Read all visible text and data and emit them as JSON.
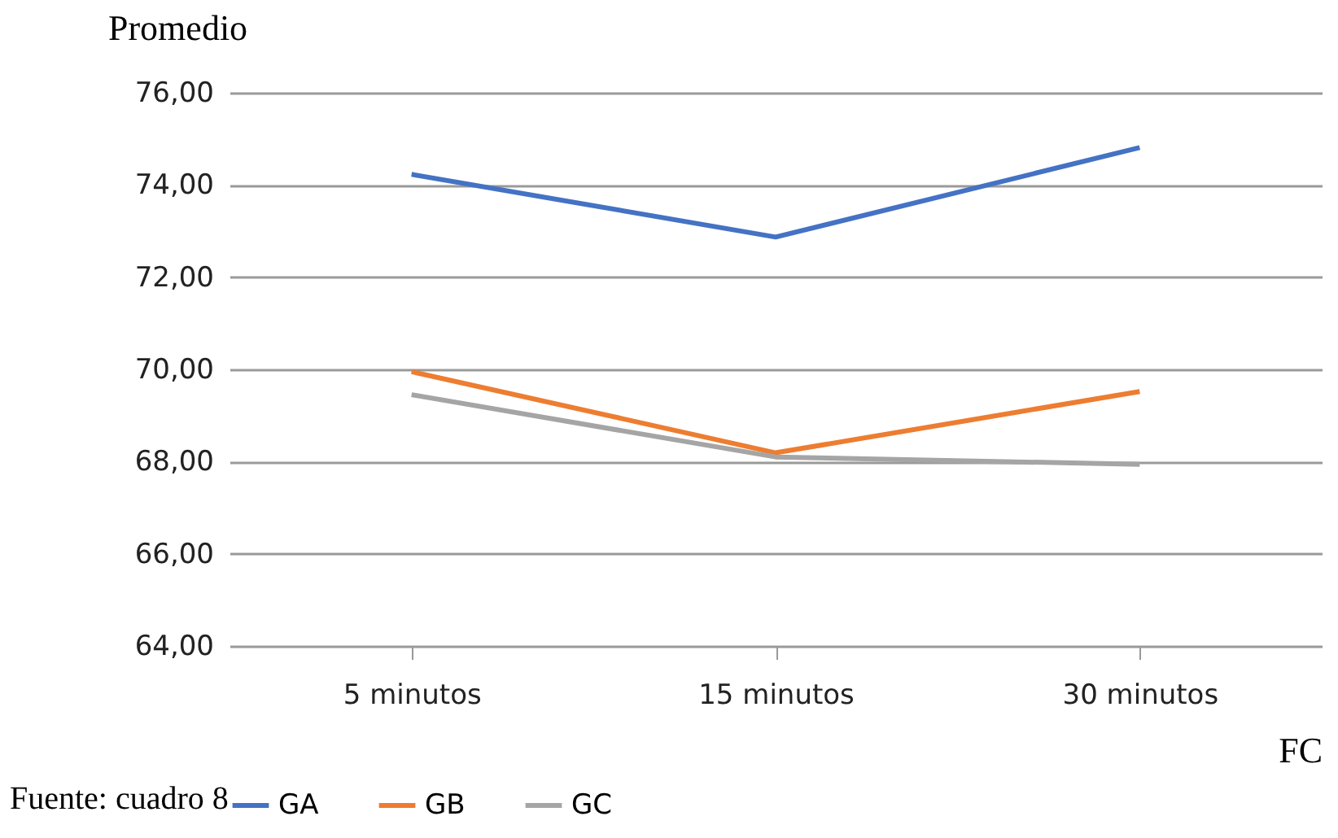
{
  "chart_data": {
    "type": "line",
    "ylabel": "Promedio",
    "xlabel": "FC",
    "annotations": [
      "Fuente: cuadro 8"
    ],
    "categories": [
      "5 minutos",
      "15 minutos",
      "30 minutos"
    ],
    "series": [
      {
        "name": "GA",
        "color": "#4472c4",
        "values": [
          74.23,
          72.87,
          74.81
        ]
      },
      {
        "name": "GB",
        "color": "#ed7d31",
        "values": [
          69.95,
          68.19,
          69.52
        ]
      },
      {
        "name": "GC",
        "color": "#a5a5a5",
        "values": [
          69.45,
          68.1,
          67.94
        ]
      }
    ],
    "ylim": [
      64,
      76
    ],
    "yticks": [
      {
        "value": 64,
        "label": "64,00"
      },
      {
        "value": 66,
        "label": "66,00"
      },
      {
        "value": 68,
        "label": "68,00"
      },
      {
        "value": 70,
        "label": "70,00"
      },
      {
        "value": 72,
        "label": "72,00"
      },
      {
        "value": 74,
        "label": "74,00"
      },
      {
        "value": 76,
        "label": "76,00"
      }
    ],
    "grid": "y",
    "legend": "bottom",
    "marker": "none",
    "line_style": "solid"
  }
}
